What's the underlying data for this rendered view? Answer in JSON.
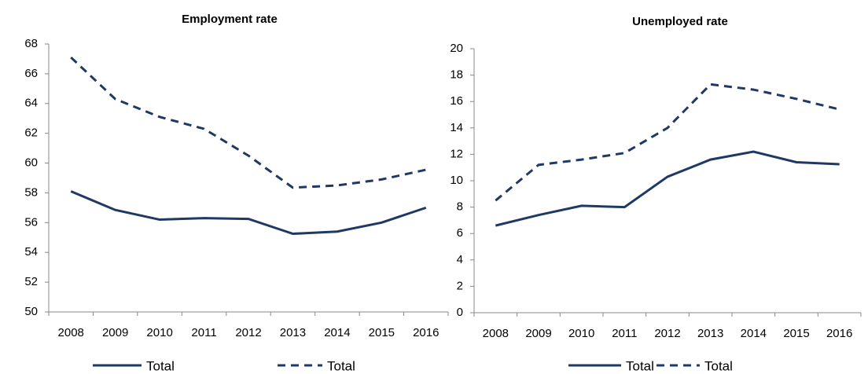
{
  "chart_data": [
    {
      "type": "line",
      "title": "Employment rate",
      "categories": [
        "2008",
        "2009",
        "2010",
        "2011",
        "2012",
        "2013",
        "2014",
        "2015",
        "2016"
      ],
      "ylim": [
        50,
        68
      ],
      "yticks": [
        50,
        52,
        54,
        56,
        58,
        60,
        62,
        64,
        66,
        68
      ],
      "legend": "bottom",
      "series": [
        {
          "name": "Total",
          "color": "#1f3864",
          "line_style": "solid",
          "values": [
            58.1,
            56.85,
            56.2,
            56.3,
            56.25,
            55.25,
            55.4,
            56.0,
            57.0
          ]
        },
        {
          "name": "Total",
          "color": "#1f3864",
          "line_style": "dashed",
          "values": [
            67.1,
            64.3,
            63.1,
            62.3,
            60.5,
            58.35,
            58.5,
            58.9,
            59.55
          ]
        }
      ]
    },
    {
      "type": "line",
      "title": "Unemployed rate",
      "categories": [
        "2008",
        "2009",
        "2010",
        "2011",
        "2012",
        "2013",
        "2014",
        "2015",
        "2016"
      ],
      "ylim": [
        0,
        20
      ],
      "yticks": [
        0,
        2,
        4,
        6,
        8,
        10,
        12,
        14,
        16,
        18,
        20
      ],
      "legend": "bottom",
      "series": [
        {
          "name": "Total",
          "color": "#1f3864",
          "line_style": "solid",
          "values": [
            6.6,
            7.4,
            8.1,
            8.0,
            10.3,
            11.6,
            12.2,
            11.4,
            11.25
          ]
        },
        {
          "name": "Total",
          "color": "#1f3864",
          "line_style": "dashed",
          "values": [
            8.5,
            11.2,
            11.6,
            12.1,
            14.0,
            17.3,
            16.9,
            16.2,
            15.4
          ]
        }
      ]
    }
  ]
}
